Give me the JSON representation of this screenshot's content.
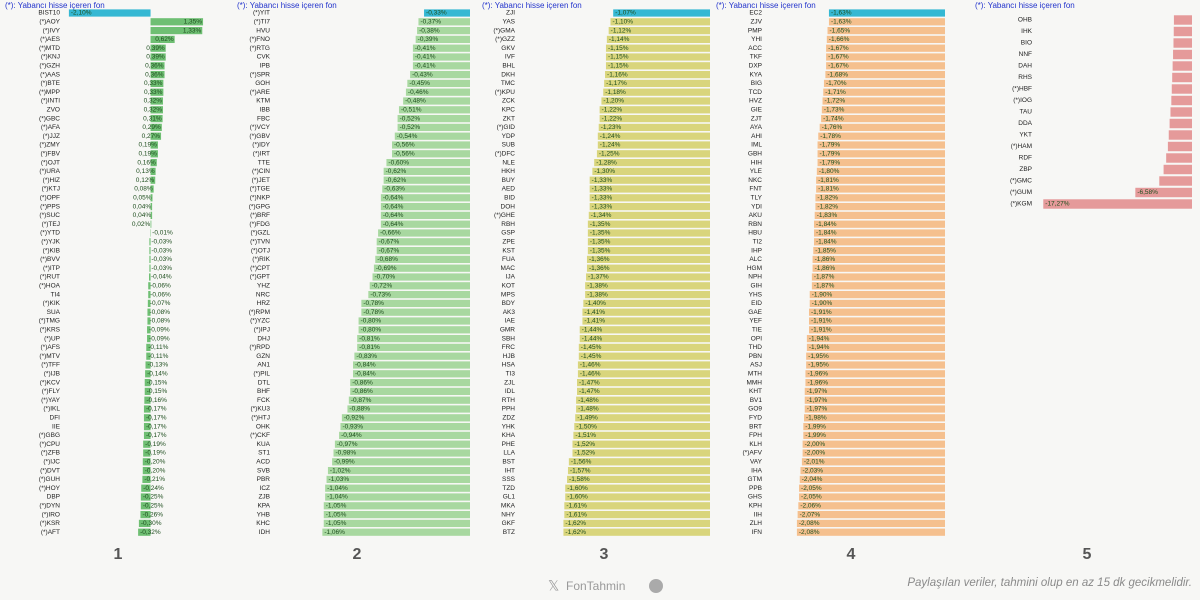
{
  "chart_data": [
    {
      "type": "bar",
      "orientation": "horizontal",
      "title": "(*): Yabancı hisse içeren fon",
      "panel_label": "1",
      "color": "#6fbf73",
      "first_color": "#35b8d3",
      "xlim": [
        -2.2,
        1.4
      ],
      "categories": [
        "BIST10",
        "(*)AOY",
        "(*)IVY",
        "(*)AES",
        "(*)MTD",
        "(*)KNJ",
        "(*)GZH",
        "(*)AAS",
        "(*)BTE",
        "(*)MPP",
        "(*)INTI",
        "ZVO",
        "(*)GBC",
        "(*)AFA",
        "(*)JJZ",
        "(*)ZMY",
        "(*)FBV",
        "(*)OJT",
        "(*)URA",
        "(*)HIZ",
        "(*)KTJ",
        "(*)OPF",
        "(*)PPS",
        "(*)SUC",
        "(*)TEJ",
        "(*)YTD",
        "(*)YJK",
        "(*)KIB",
        "(*)BVV",
        "(*)ITP",
        "(*)RUT",
        "(*)HOA",
        "TI4",
        "(*)KIK",
        "SUA",
        "(*)TMG",
        "(*)KRS",
        "(*)UP",
        "(*)AFS",
        "(*)MTV",
        "(*)TFF",
        "(*)IJB",
        "(*)KCV",
        "(*)FLY",
        "(*)YAY",
        "(*)IKL",
        "DFI",
        "IIE",
        "(*)GBG",
        "(*)CPU",
        "(*)ZFB",
        "(*)IJC",
        "(*)DVT",
        "(*)GUH",
        "(*)HOY",
        "DBP",
        "(*)DYN",
        "(*)IRO",
        "(*)KSR",
        "(*)AFT"
      ],
      "values": [
        -2.1,
        1.35,
        1.33,
        0.62,
        0.39,
        0.39,
        0.36,
        0.36,
        0.33,
        0.33,
        0.32,
        0.32,
        0.31,
        0.29,
        0.27,
        0.19,
        0.19,
        0.16,
        0.13,
        0.12,
        0.08,
        0.05,
        0.04,
        0.04,
        0.02,
        -0.01,
        -0.03,
        -0.03,
        -0.03,
        -0.03,
        -0.04,
        -0.06,
        -0.06,
        -0.07,
        -0.08,
        -0.08,
        -0.09,
        -0.09,
        -0.11,
        -0.11,
        -0.13,
        -0.14,
        -0.15,
        -0.15,
        -0.16,
        -0.17,
        -0.17,
        -0.17,
        -0.17,
        -0.19,
        -0.19,
        -0.2,
        -0.2,
        -0.21,
        -0.24,
        -0.25,
        -0.25,
        -0.26,
        -0.3,
        -0.32
      ],
      "value_labels": [
        "-2,10%",
        "1,35%",
        "1,33%",
        "0,62%",
        "0,39%",
        "0,39%",
        "0,36%",
        "0,36%",
        "0,33%",
        "0,33%",
        "0,32%",
        "0,32%",
        "0,31%",
        "0,29%",
        "0,27%",
        "0,19%",
        "0,19%",
        "0,16%",
        "0,13%",
        "0,12%",
        "0,08%",
        "0,05%",
        "0,04%",
        "0,04%",
        "0,02%",
        "-0,01%",
        "-0,03%",
        "-0,03%",
        "-0,03%",
        "-0,03%",
        "-0,04%",
        "-0,06%",
        "-0,06%",
        "-0,07%",
        "-0,08%",
        "-0,08%",
        "-0,09%",
        "-0,09%",
        "-0,11%",
        "-0,11%",
        "-0,13%",
        "-0,14%",
        "-0,15%",
        "-0,15%",
        "-0,16%",
        "-0,17%",
        "-0,17%",
        "-0,17%",
        "-0,17%",
        "-0,19%",
        "-0,19%",
        "-0,20%",
        "-0,20%",
        "-0,21%",
        "-0,24%",
        "-0,25%",
        "-0,25%",
        "-0,26%",
        "-0,30%",
        "-0,32%"
      ]
    },
    {
      "type": "bar",
      "orientation": "horizontal",
      "title": "(*): Yabancı hisse içeren fon",
      "panel_label": "2",
      "color": "#a8d8a0",
      "first_color": "#35b8d3",
      "xlim": [
        -1.4,
        0
      ],
      "categories": [
        "(*)YIT",
        "(*)TI7",
        "HVU",
        "(*)FNO",
        "(*)RTG",
        "CVK",
        "IPB",
        "(*)SPR",
        "GOH",
        "(*)ARE",
        "KTM",
        "IBB",
        "FBC",
        "(*)VCY",
        "(*)GBV",
        "(*)IDY",
        "(*)IRT",
        "TTE",
        "(*)CIN",
        "(*)JET",
        "(*)TGE",
        "(*)NKP",
        "(*)GPG",
        "(*)BRF",
        "(*)FDG",
        "(*)GZL",
        "(*)TVN",
        "(*)OTJ",
        "(*)RIK",
        "(*)CPT",
        "(*)GPT",
        "YHZ",
        "NRC",
        "HRZ",
        "(*)RPM",
        "(*)YZC",
        "(*)IPJ",
        "DHJ",
        "(*)RPD",
        "GZN",
        "AN1",
        "(*)PIL",
        "DTL",
        "BHF",
        "FCK",
        "(*)KU3",
        "(*)HTJ",
        "OHK",
        "(*)CKF",
        "KUA",
        "ST1",
        "ACD",
        "SVB",
        "PBR",
        "ICZ",
        "ZJB",
        "KPA",
        "YHB",
        "KHC",
        "IDH"
      ],
      "values": [
        -0.33,
        -0.37,
        -0.38,
        -0.39,
        -0.41,
        -0.41,
        -0.41,
        -0.43,
        -0.45,
        -0.46,
        -0.48,
        -0.51,
        -0.52,
        -0.52,
        -0.54,
        -0.56,
        -0.56,
        -0.6,
        -0.62,
        -0.62,
        -0.63,
        -0.64,
        -0.64,
        -0.64,
        -0.64,
        -0.66,
        -0.67,
        -0.67,
        -0.68,
        -0.69,
        -0.7,
        -0.72,
        -0.73,
        -0.78,
        -0.78,
        -0.8,
        -0.8,
        -0.81,
        -0.81,
        -0.83,
        -0.84,
        -0.84,
        -0.86,
        -0.86,
        -0.87,
        -0.88,
        -0.92,
        -0.93,
        -0.94,
        -0.97,
        -0.98,
        -0.99,
        -1.02,
        -1.03,
        -1.04,
        -1.04,
        -1.05,
        -1.05,
        -1.05,
        -1.06
      ],
      "value_labels": [
        "-0,33%",
        "-0,37%",
        "-0,38%",
        "-0,39%",
        "-0,41%",
        "-0,41%",
        "-0,41%",
        "-0,43%",
        "-0,45%",
        "-0,46%",
        "-0,48%",
        "-0,51%",
        "-0,52%",
        "-0,52%",
        "-0,54%",
        "-0,56%",
        "-0,56%",
        "-0,60%",
        "-0,62%",
        "-0,62%",
        "-0,63%",
        "-0,64%",
        "-0,64%",
        "-0,64%",
        "-0,64%",
        "-0,66%",
        "-0,67%",
        "-0,67%",
        "-0,68%",
        "-0,69%",
        "-0,70%",
        "-0,72%",
        "-0,73%",
        "-0,78%",
        "-0,78%",
        "-0,80%",
        "-0,80%",
        "-0,81%",
        "-0,81%",
        "-0,83%",
        "-0,84%",
        "-0,84%",
        "-0,86%",
        "-0,86%",
        "-0,87%",
        "-0,88%",
        "-0,92%",
        "-0,93%",
        "-0,94%",
        "-0,97%",
        "-0,98%",
        "-0,99%",
        "-1,02%",
        "-1,03%",
        "-1,04%",
        "-1,04%",
        "-1,05%",
        "-1,05%",
        "-1,05%",
        "-1,06%"
      ]
    },
    {
      "type": "bar",
      "orientation": "horizontal",
      "title": "(*): Yabancı hisse içeren fon",
      "panel_label": "3",
      "color": "#d9d57c",
      "first_color": "#35b8d3",
      "xlim": [
        -2.1,
        0
      ],
      "categories": [
        "ZJI",
        "YAS",
        "(*)GMA",
        "(*)GZZ",
        "GKV",
        "IVF",
        "BHL",
        "DKH",
        "TMC",
        "(*)KPU",
        "ZCK",
        "KPC",
        "ZKT",
        "(*)GID",
        "YDP",
        "SUB",
        "(*)DFC",
        "NLE",
        "HKH",
        "BUY",
        "AED",
        "BID",
        "DOH",
        "(*)GHE",
        "RBH",
        "GSP",
        "ZPE",
        "KST",
        "FUA",
        "MAC",
        "IJA",
        "KOT",
        "MPS",
        "BDY",
        "AK3",
        "IAE",
        "GMR",
        "SBH",
        "FRC",
        "HJB",
        "HSA",
        "TI3",
        "ZJL",
        "IDL",
        "RTH",
        "PPH",
        "ZDZ",
        "YHK",
        "KHA",
        "PHE",
        "LLA",
        "BST",
        "IHT",
        "SSS",
        "TZD",
        "GL1",
        "MKA",
        "NHY",
        "GKF",
        "BTZ"
      ],
      "values": [
        -1.07,
        -1.1,
        -1.12,
        -1.14,
        -1.15,
        -1.15,
        -1.15,
        -1.16,
        -1.17,
        -1.18,
        -1.2,
        -1.22,
        -1.22,
        -1.23,
        -1.24,
        -1.24,
        -1.25,
        -1.28,
        -1.3,
        -1.33,
        -1.33,
        -1.33,
        -1.33,
        -1.34,
        -1.35,
        -1.35,
        -1.35,
        -1.35,
        -1.36,
        -1.36,
        -1.37,
        -1.38,
        -1.38,
        -1.4,
        -1.41,
        -1.41,
        -1.44,
        -1.44,
        -1.45,
        -1.45,
        -1.46,
        -1.46,
        -1.47,
        -1.47,
        -1.48,
        -1.48,
        -1.49,
        -1.5,
        -1.51,
        -1.52,
        -1.52,
        -1.56,
        -1.57,
        -1.58,
        -1.6,
        -1.6,
        -1.61,
        -1.61,
        -1.62,
        -1.62
      ],
      "value_labels": [
        "-1,07%",
        "-1,10%",
        "-1,12%",
        "-1,14%",
        "-1,15%",
        "-1,15%",
        "-1,15%",
        "-1,16%",
        "-1,17%",
        "-1,18%",
        "-1,20%",
        "-1,22%",
        "-1,22%",
        "-1,23%",
        "-1,24%",
        "-1,24%",
        "-1,25%",
        "-1,28%",
        "-1,30%",
        "-1,33%",
        "-1,33%",
        "-1,33%",
        "-1,33%",
        "-1,34%",
        "-1,35%",
        "-1,35%",
        "-1,35%",
        "-1,35%",
        "-1,36%",
        "-1,36%",
        "-1,37%",
        "-1,38%",
        "-1,38%",
        "-1,40%",
        "-1,41%",
        "-1,41%",
        "-1,44%",
        "-1,44%",
        "-1,45%",
        "-1,45%",
        "-1,46%",
        "-1,46%",
        "-1,47%",
        "-1,47%",
        "-1,48%",
        "-1,48%",
        "-1,49%",
        "-1,50%",
        "-1,51%",
        "-1,52%",
        "-1,52%",
        "-1,56%",
        "-1,57%",
        "-1,58%",
        "-1,60%",
        "-1,60%",
        "-1,61%",
        "-1,61%",
        "-1,62%",
        "-1,62%"
      ]
    },
    {
      "type": "bar",
      "orientation": "horizontal",
      "title": "(*): Yabancı hisse içeren fon",
      "panel_label": "4",
      "color": "#f5c08e",
      "first_color": "#35b8d3",
      "xlim": [
        -2.5,
        0
      ],
      "categories": [
        "EC2",
        "ZJV",
        "PMP",
        "YHI",
        "ACC",
        "TKF",
        "DXP",
        "KYA",
        "BIG",
        "TCD",
        "HVZ",
        "GIE",
        "ZJT",
        "AYA",
        "AHI",
        "IML",
        "GBH",
        "HIH",
        "YLE",
        "NKC",
        "FNT",
        "TLY",
        "YDI",
        "AKU",
        "RBN",
        "HBU",
        "TI2",
        "IHP",
        "ALC",
        "HGM",
        "NPH",
        "GIH",
        "YHS",
        "EID",
        "GAE",
        "YEF",
        "TIE",
        "OPI",
        "THD",
        "PBN",
        "ASJ",
        "MTH",
        "MMH",
        "KHT",
        "BV1",
        "GO9",
        "FYD",
        "BRT",
        "FPH",
        "KLH",
        "(*)AFV",
        "VAY",
        "IHA",
        "GTM",
        "PPB",
        "GHS",
        "KPH",
        "IIH",
        "ZLH",
        "IFN"
      ],
      "values": [
        -1.63,
        -1.63,
        -1.65,
        -1.66,
        -1.67,
        -1.67,
        -1.67,
        -1.68,
        -1.7,
        -1.71,
        -1.72,
        -1.73,
        -1.74,
        -1.76,
        -1.78,
        -1.79,
        -1.79,
        -1.79,
        -1.8,
        -1.81,
        -1.81,
        -1.82,
        -1.82,
        -1.83,
        -1.84,
        -1.84,
        -1.84,
        -1.85,
        -1.86,
        -1.86,
        -1.87,
        -1.87,
        -1.9,
        -1.9,
        -1.91,
        -1.91,
        -1.91,
        -1.94,
        -1.94,
        -1.95,
        -1.95,
        -1.96,
        -1.96,
        -1.97,
        -1.97,
        -1.97,
        -1.98,
        -1.99,
        -1.99,
        -2.0,
        -2.0,
        -2.01,
        -2.03,
        -2.04,
        -2.05,
        -2.05,
        -2.06,
        -2.07,
        -2.08,
        -2.08
      ],
      "value_labels": [
        "-1,63%",
        "-1,63%",
        "-1,65%",
        "-1,66%",
        "-1,67%",
        "-1,67%",
        "-1,67%",
        "-1,68%",
        "-1,70%",
        "-1,71%",
        "-1,72%",
        "-1,73%",
        "-1,74%",
        "-1,76%",
        "-1,78%",
        "-1,79%",
        "-1,79%",
        "-1,79%",
        "-1,80%",
        "-1,81%",
        "-1,81%",
        "-1,82%",
        "-1,82%",
        "-1,83%",
        "-1,84%",
        "-1,84%",
        "-1,84%",
        "-1,85%",
        "-1,86%",
        "-1,86%",
        "-1,87%",
        "-1,87%",
        "-1,90%",
        "-1,90%",
        "-1,91%",
        "-1,91%",
        "-1,91%",
        "-1,94%",
        "-1,94%",
        "-1,95%",
        "-1,95%",
        "-1,96%",
        "-1,96%",
        "-1,97%",
        "-1,97%",
        "-1,97%",
        "-1,98%",
        "-1,99%",
        "-1,99%",
        "-2,00%",
        "-2,00%",
        "-2,01%",
        "-2,03%",
        "-2,04%",
        "-2,05%",
        "-2,05%",
        "-2,06%",
        "-2,07%",
        "-2,08%",
        "-2,08%"
      ]
    },
    {
      "type": "bar",
      "orientation": "horizontal",
      "title": "(*): Yabancı hisse içeren fon",
      "panel_label": "5",
      "color": "#e59a9a",
      "xlim": [
        -18,
        0
      ],
      "categories": [
        "OHB",
        "IHK",
        "BIO",
        "NNF",
        "DAH",
        "RHS",
        "(*)HBF",
        "(*)IOG",
        "TAU",
        "DDA",
        "YKT",
        "(*)HAM",
        "RDF",
        "ZBP",
        "(*)GMC",
        "(*)GUM",
        "(*)KGM"
      ],
      "values": [
        -2.1,
        -2.12,
        -2.15,
        -2.2,
        -2.25,
        -2.3,
        -2.35,
        -2.4,
        -2.5,
        -2.6,
        -2.7,
        -2.8,
        -3.0,
        -3.3,
        -3.8,
        -6.58,
        -17.27
      ],
      "value_labels": [
        null,
        null,
        null,
        null,
        null,
        null,
        null,
        null,
        null,
        null,
        null,
        null,
        null,
        null,
        null,
        "-6,58%",
        "-17,27%"
      ]
    }
  ],
  "footer": {
    "brand": "FonTahmin",
    "note": "Paylaşılan veriler, tahmini olup en az 15 dk gecikmelidir."
  }
}
